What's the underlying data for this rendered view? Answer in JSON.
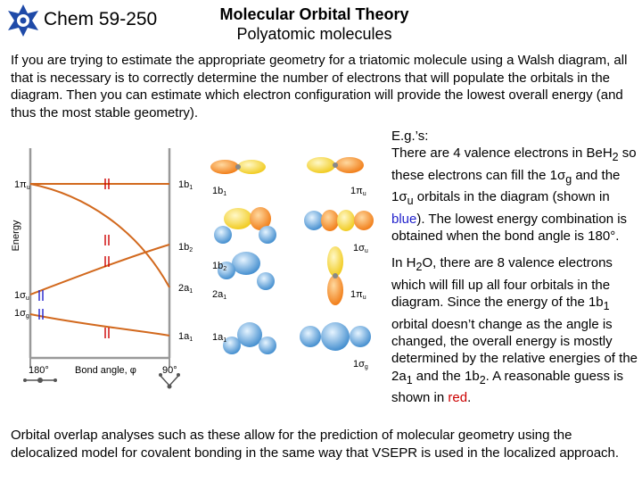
{
  "header": {
    "course": "Chem 59-250",
    "title": "Molecular Orbital Theory",
    "subtitle": "Polyatomic molecules"
  },
  "intro": "If you are trying to estimate the appropriate geometry for a triatomic molecule using a Walsh diagram, all that is necessary is to correctly determine the number of electrons that will populate the orbitals in the diagram.  Then you can estimate which electron configuration will provide the lowest overall energy (and thus the most stable geometry).",
  "walsh_diagram": {
    "y_axis_label": "Energy",
    "x_axis_label": "Bond angle, φ",
    "x_left": "180°",
    "x_right": "90°",
    "left_levels": [
      "1πu",
      "1σu",
      "1σg"
    ],
    "right_levels": [
      "1b1",
      "1b2",
      "2a1",
      "1a1"
    ]
  },
  "orbital_labels": {
    "r1_left": "1b1",
    "r1_right": "1πu",
    "r2_right": "1σu",
    "r3_left": "1b2",
    "r3_mid": "2a1",
    "r3_right": "1πu",
    "r4_left": "1a1",
    "r4_right": "1σg"
  },
  "right_text": {
    "eg": "E.g.’s:",
    "be_1": "There are 4 valence electrons in Be",
    "be_2": "H",
    "be_sub": "2",
    "be_3": " so these electrons can fill the 1",
    "be_sigma1": "σ",
    "be_sub_g": "g",
    "be_4": " and the 1",
    "be_sigma2": "σ",
    "be_sub_u": "u",
    "be_5": " orbitals in the diagram (shown in ",
    "be_blue": "blue",
    "be_6": ").  The lowest energy combination is obtained when the bond angle is 180°.",
    "h2o_1": "In H",
    "h2o_sub": "2",
    "h2o_2": "O, there are 8 valence electrons which will fill up all four orbitals in the diagram.  Since the energy of the 1b",
    "h2o_sub1": "1",
    "h2o_3": " orbital doesn’t change as the angle is changed, the overall energy is mostly determined by the relative energies of the 2a",
    "h2o_sub2": "1",
    "h2o_4": " and the 1b",
    "h2o_sub3": "2",
    "h2o_5": ".  A reasonable guess is shown in ",
    "h2o_red": "red",
    "h2o_6": "."
  },
  "outro": "Orbital overlap analyses such as these allow for the prediction of molecular geometry using the delocalized model for covalent bonding in the same way that VSEPR is used in the localized approach.",
  "colors": {
    "curve": "#d2691e",
    "orbital_orange": "#f07810",
    "orbital_yellow": "#f5d21e",
    "orbital_blue": "#4a9fd8",
    "electron_blue": "#2222cc",
    "electron_red": "#cc0000"
  }
}
